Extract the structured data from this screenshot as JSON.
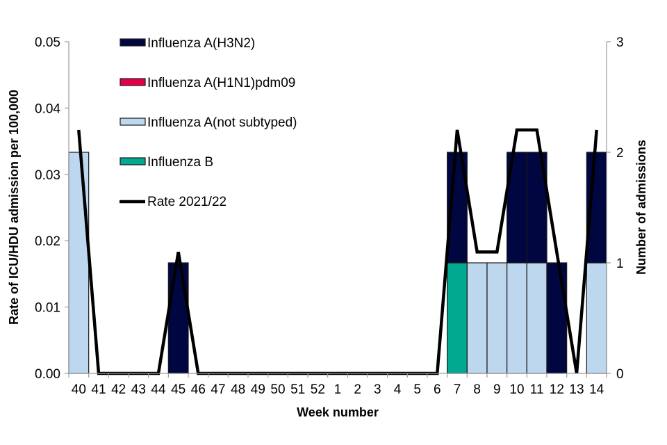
{
  "chart_data": {
    "type": "bar",
    "subtype": "stacked bar with line overlay (dual axis)",
    "title": "",
    "xlabel": "Week number",
    "ylabel": "Rate of ICU/HDU admission per 100,000",
    "y2label": "Number of  admissions",
    "ylim": [
      0,
      0.05
    ],
    "y_ticks": [
      "0.00",
      "0.01",
      "0.02",
      "0.03",
      "0.04",
      "0.05"
    ],
    "y2lim": [
      0,
      3
    ],
    "y2_ticks": [
      "0",
      "1",
      "2",
      "3"
    ],
    "grid": false,
    "legend_position": "top-left inside plot",
    "categories": [
      "40",
      "41",
      "42",
      "43",
      "44",
      "45",
      "46",
      "47",
      "48",
      "49",
      "50",
      "51",
      "52",
      "1",
      "2",
      "3",
      "4",
      "5",
      "6",
      "7",
      "8",
      "9",
      "10",
      "11",
      "12",
      "13",
      "14"
    ],
    "series": [
      {
        "name": "Influenza A(not subtyped)",
        "axis": "right",
        "kind": "bar",
        "color": "#bdd7ee",
        "values": [
          2,
          0,
          0,
          0,
          0,
          0,
          0,
          0,
          0,
          0,
          0,
          0,
          0,
          0,
          0,
          0,
          0,
          0,
          0,
          0,
          1,
          1,
          1,
          1,
          0,
          0,
          1
        ]
      },
      {
        "name": "Influenza B",
        "axis": "right",
        "kind": "bar",
        "color": "#00a98f",
        "values": [
          0,
          0,
          0,
          0,
          0,
          0,
          0,
          0,
          0,
          0,
          0,
          0,
          0,
          0,
          0,
          0,
          0,
          0,
          0,
          1,
          0,
          0,
          0,
          0,
          0,
          0,
          0
        ]
      },
      {
        "name": "Influenza A(H1N1)pdm09",
        "axis": "right",
        "kind": "bar",
        "color": "#e40046",
        "values": [
          0,
          0,
          0,
          0,
          0,
          0,
          0,
          0,
          0,
          0,
          0,
          0,
          0,
          0,
          0,
          0,
          0,
          0,
          0,
          0,
          0,
          0,
          0,
          0,
          0,
          0,
          0
        ]
      },
      {
        "name": "Influenza A(H3N2)",
        "axis": "right",
        "kind": "bar",
        "color": "#000640",
        "values": [
          0,
          0,
          0,
          0,
          0,
          1,
          0,
          0,
          0,
          0,
          0,
          0,
          0,
          0,
          0,
          0,
          0,
          0,
          0,
          1,
          0,
          0,
          1,
          1,
          1,
          0,
          1
        ]
      },
      {
        "name": "Rate 2021/22",
        "axis": "left",
        "kind": "line",
        "color": "#000000",
        "values": [
          0.0367,
          0,
          0,
          0,
          0,
          0.0183,
          0,
          0,
          0,
          0,
          0,
          0,
          0,
          0,
          0,
          0,
          0,
          0,
          0,
          0.0367,
          0.0183,
          0.0183,
          0.0367,
          0.0367,
          0.0183,
          0,
          0.0367
        ]
      }
    ]
  },
  "legend": [
    {
      "label": "Influenza A(H3N2)",
      "color": "#000640",
      "type": "box"
    },
    {
      "label": "Influenza A(H1N1)pdm09",
      "color": "#e40046",
      "type": "box"
    },
    {
      "label": "Influenza A(not subtyped)",
      "color": "#bdd7ee",
      "type": "box"
    },
    {
      "label": "Influenza B",
      "color": "#00a98f",
      "type": "box"
    },
    {
      "label": "Rate 2021/22",
      "color": "#000000",
      "type": "line"
    }
  ],
  "axes": {
    "x_title": "Week number",
    "y_left_title": "Rate of ICU/HDU admission per 100,000",
    "y_right_title": "Number of  admissions"
  }
}
